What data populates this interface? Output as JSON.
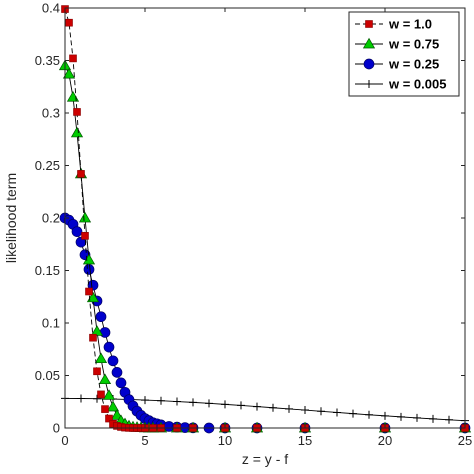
{
  "chart_data": {
    "type": "line",
    "title": "",
    "xlabel": "z = y - f",
    "ylabel": "likelihood term",
    "xlim": [
      0,
      25
    ],
    "ylim": [
      0,
      0.4
    ],
    "xticks": [
      0,
      5,
      10,
      15,
      20,
      25
    ],
    "yticks": [
      0,
      0.05,
      0.1,
      0.15,
      0.2,
      0.25,
      0.3,
      0.35,
      0.4
    ],
    "xtick_labels": [
      "0",
      "5",
      "10",
      "15",
      "20",
      "25"
    ],
    "ytick_labels": [
      "0",
      "0.05",
      "0.1",
      "0.15",
      "0.2",
      "0.25",
      "0.3",
      "0.35",
      "0.4"
    ],
    "grid": false,
    "legend_position": "top-right",
    "series": [
      {
        "name": "w = 1.0",
        "color": "#cc0000",
        "marker": "square",
        "line_style": "dashed",
        "x": [
          0,
          0.25,
          0.5,
          0.75,
          1.0,
          1.25,
          1.5,
          1.75,
          2.0,
          2.25,
          2.5,
          2.75,
          3.0,
          3.25,
          3.5,
          3.75,
          4.0,
          4.25,
          4.5,
          4.75,
          5.0,
          5.5,
          6.0,
          7.0,
          8.0,
          10.0,
          12.0,
          15.0,
          20.0,
          25.0
        ],
        "values": [
          0.399,
          0.386,
          0.352,
          0.301,
          0.242,
          0.183,
          0.13,
          0.086,
          0.054,
          0.032,
          0.018,
          0.009,
          0.004,
          0.002,
          0.001,
          0.0004,
          0.0001,
          0,
          0,
          0,
          0,
          0,
          0,
          0,
          0,
          0,
          0,
          0,
          0,
          0
        ]
      },
      {
        "name": "w = 0.75",
        "color": "#00cc00",
        "marker": "triangle",
        "line_style": "solid",
        "x": [
          0,
          0.25,
          0.5,
          0.75,
          1.0,
          1.25,
          1.5,
          1.75,
          2.0,
          2.25,
          2.5,
          2.75,
          3.0,
          3.25,
          3.5,
          3.75,
          4.0,
          4.25,
          4.5,
          4.75,
          5.0,
          5.25,
          5.5,
          6.0,
          7.0,
          8.0,
          10.0,
          12.0,
          15.0,
          20.0,
          25.0
        ],
        "values": [
          0.345,
          0.337,
          0.315,
          0.281,
          0.242,
          0.2,
          0.16,
          0.124,
          0.092,
          0.066,
          0.046,
          0.031,
          0.02,
          0.012,
          0.007,
          0.004,
          0.002,
          0.001,
          0.0006,
          0.0003,
          0.0001,
          0,
          0,
          0,
          0,
          0,
          0,
          0,
          0,
          0,
          0
        ]
      },
      {
        "name": "w = 0.25",
        "color": "#0000cc",
        "marker": "circle",
        "line_style": "solid",
        "x": [
          0,
          0.25,
          0.5,
          0.75,
          1.0,
          1.25,
          1.5,
          1.75,
          2.0,
          2.25,
          2.5,
          2.75,
          3.0,
          3.25,
          3.5,
          3.75,
          4.0,
          4.25,
          4.5,
          4.75,
          5.0,
          5.25,
          5.5,
          5.75,
          6.0,
          6.5,
          7.0,
          7.5,
          8.0,
          9.0,
          10.0,
          12.0,
          15.0,
          20.0,
          25.0
        ],
        "values": [
          0.2,
          0.198,
          0.194,
          0.187,
          0.177,
          0.165,
          0.151,
          0.136,
          0.121,
          0.106,
          0.091,
          0.077,
          0.064,
          0.053,
          0.043,
          0.034,
          0.027,
          0.021,
          0.016,
          0.012,
          0.009,
          0.007,
          0.005,
          0.004,
          0.003,
          0.0015,
          0.0008,
          0.0004,
          0.0002,
          0,
          0,
          0,
          0,
          0,
          0
        ]
      },
      {
        "name": "w = 0.005",
        "color": "#000000",
        "marker": "plus",
        "line_style": "solid",
        "x": [
          0,
          1,
          2,
          3,
          4,
          5,
          6,
          7,
          8,
          9,
          10,
          11,
          12,
          13,
          14,
          15,
          16,
          17,
          18,
          19,
          20,
          21,
          22,
          23,
          24,
          25
        ],
        "values": [
          0.0282,
          0.0281,
          0.0279,
          0.0276,
          0.0272,
          0.0266,
          0.026,
          0.0252,
          0.0244,
          0.0235,
          0.0225,
          0.0215,
          0.0204,
          0.0193,
          0.0182,
          0.0171,
          0.0159,
          0.0148,
          0.0137,
          0.0126,
          0.0116,
          0.0106,
          0.0096,
          0.0087,
          0.0078,
          0.007
        ]
      }
    ]
  }
}
